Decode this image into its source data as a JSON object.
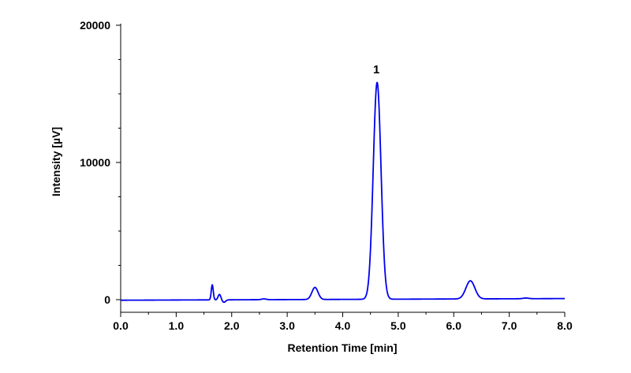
{
  "chart_data": {
    "type": "line",
    "title": "",
    "xlabel": "Retention Time [min]",
    "ylabel": "Intensity [µV]",
    "xlim": [
      0.0,
      8.0
    ],
    "ylim": [
      -900,
      20000
    ],
    "x_ticks": [
      "0.0",
      "1.0",
      "2.0",
      "3.0",
      "4.0",
      "5.0",
      "6.0",
      "7.0",
      "8.0"
    ],
    "y_ticks": [
      "0",
      "10000",
      "20000"
    ],
    "y_minor_step": 2500,
    "grid": false,
    "legend": "none",
    "line_color": "#0000ee",
    "baseline_start": -40,
    "baseline_end": 80,
    "peaks": [
      {
        "rt": 1.65,
        "height": 1100,
        "sigma": 0.018
      },
      {
        "rt": 1.78,
        "height": 400,
        "sigma": 0.025
      },
      {
        "rt": 1.86,
        "height": -180,
        "sigma": 0.03
      },
      {
        "rt": 2.58,
        "height": 60,
        "sigma": 0.04
      },
      {
        "rt": 3.5,
        "height": 880,
        "sigma": 0.055
      },
      {
        "rt": 4.62,
        "height": 15800,
        "sigma": 0.07,
        "label": "1"
      },
      {
        "rt": 6.3,
        "height": 1320,
        "sigma": 0.08
      },
      {
        "rt": 7.3,
        "height": 50,
        "sigma": 0.05
      }
    ]
  }
}
